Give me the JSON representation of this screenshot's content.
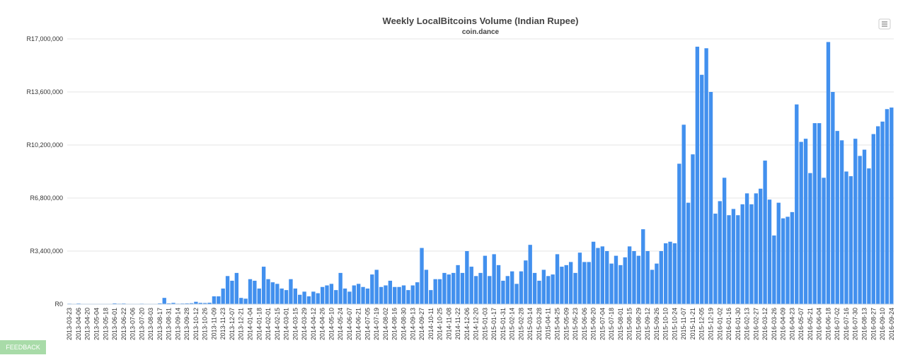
{
  "chart_data": {
    "type": "bar",
    "title": "Weekly LocalBitcoins Volume (Indian Rupee)",
    "subtitle": "coin.dance",
    "color": "#4290ee",
    "grid": true,
    "ylim": [
      0,
      17000000
    ],
    "yticks": [
      {
        "value": 0,
        "label": "R0"
      },
      {
        "value": 3400000,
        "label": "R3,400,000"
      },
      {
        "value": 6800000,
        "label": "R6,800,000"
      },
      {
        "value": 10200000,
        "label": "R10,200,000"
      },
      {
        "value": 13600000,
        "label": "R13,600,000"
      },
      {
        "value": 17000000,
        "label": "R17,000,000"
      }
    ],
    "categories": [
      "2013-03-23",
      null,
      "2013-04-06",
      null,
      "2013-04-20",
      null,
      "2013-05-04",
      null,
      "2013-05-18",
      null,
      "2013-06-01",
      null,
      "2013-06-22",
      null,
      "2013-07-06",
      null,
      "2013-07-20",
      null,
      "2013-08-03",
      null,
      "2013-08-17",
      null,
      "2013-08-31",
      null,
      "2013-09-14",
      null,
      "2013-09-28",
      null,
      "2013-10-12",
      null,
      "2013-10-26",
      null,
      "2013-11-09",
      null,
      "2013-11-23",
      null,
      "2013-12-07",
      null,
      "2013-12-21",
      null,
      "2014-01-04",
      null,
      "2014-01-18",
      null,
      "2014-02-01",
      null,
      "2014-02-15",
      null,
      "2014-03-01",
      null,
      "2014-03-15",
      null,
      "2014-03-29",
      null,
      "2014-04-12",
      null,
      "2014-04-26",
      null,
      "2014-05-10",
      null,
      "2014-05-24",
      null,
      "2014-06-07",
      null,
      "2014-06-21",
      null,
      "2014-07-05",
      null,
      "2014-07-19",
      null,
      "2014-08-02",
      null,
      "2014-08-16",
      null,
      "2014-08-30",
      null,
      "2014-09-13",
      null,
      "2014-09-27",
      null,
      "2014-10-11",
      null,
      "2014-10-25",
      null,
      "2014-11-08",
      null,
      "2014-11-22",
      null,
      "2014-12-06",
      null,
      "2014-12-20",
      null,
      "2015-01-03",
      null,
      "2015-01-17",
      null,
      "2015-01-31",
      null,
      "2015-02-14",
      null,
      "2015-02-28",
      null,
      "2015-03-14",
      null,
      "2015-03-28",
      null,
      "2015-04-11",
      null,
      "2015-04-25",
      null,
      "2015-05-09",
      null,
      "2015-05-23",
      null,
      "2015-06-06",
      null,
      "2015-06-20",
      null,
      "2015-07-04",
      null,
      "2015-07-18",
      null,
      "2015-08-01",
      null,
      "2015-08-15",
      null,
      "2015-08-29",
      null,
      "2015-09-12",
      null,
      "2015-09-26",
      null,
      "2015-10-10",
      null,
      "2015-10-24",
      null,
      "2015-11-07",
      null,
      "2015-11-21",
      null,
      "2015-12-05",
      null,
      "2015-12-19",
      null,
      "2016-01-02",
      null,
      "2016-01-16",
      null,
      "2016-01-30",
      null,
      "2016-02-13",
      null,
      "2016-02-27",
      null,
      "2016-03-12",
      null,
      "2016-03-26",
      null,
      "2016-04-09",
      null,
      "2016-04-23",
      null,
      "2016-05-07",
      null,
      "2016-05-21",
      null,
      "2016-06-04",
      null,
      "2016-06-18",
      null,
      "2016-07-02",
      null,
      "2016-07-16",
      null,
      "2016-07-30",
      null,
      "2016-08-13",
      null,
      "2016-08-27",
      null,
      "2016-09-10",
      null,
      "2016-09-24"
    ],
    "values": [
      30000,
      20000,
      40000,
      20000,
      10000,
      10000,
      20000,
      10000,
      10000,
      10000,
      50000,
      30000,
      40000,
      20000,
      10000,
      20000,
      30000,
      10000,
      20000,
      10000,
      50000,
      400000,
      50000,
      80000,
      30000,
      40000,
      50000,
      60000,
      150000,
      80000,
      70000,
      90000,
      500000,
      500000,
      1000000,
      1800000,
      1500000,
      2000000,
      400000,
      350000,
      1600000,
      1500000,
      1000000,
      2400000,
      1600000,
      1400000,
      1300000,
      1000000,
      900000,
      1600000,
      1000000,
      600000,
      800000,
      500000,
      800000,
      700000,
      1100000,
      1200000,
      1300000,
      900000,
      2000000,
      1000000,
      800000,
      1200000,
      1300000,
      1100000,
      1000000,
      1900000,
      2200000,
      1100000,
      1200000,
      1500000,
      1100000,
      1100000,
      1200000,
      900000,
      1200000,
      1400000,
      3600000,
      2200000,
      900000,
      1600000,
      1600000,
      2000000,
      1900000,
      2000000,
      2500000,
      2000000,
      3400000,
      2400000,
      1800000,
      2000000,
      3100000,
      1800000,
      3200000,
      2500000,
      1500000,
      1800000,
      2100000,
      1300000,
      2100000,
      2800000,
      3800000,
      2000000,
      1500000,
      2200000,
      1800000,
      1900000,
      3200000,
      2400000,
      2500000,
      2700000,
      2000000,
      3300000,
      2700000,
      2700000,
      4000000,
      3600000,
      3700000,
      3400000,
      2600000,
      3100000,
      2500000,
      3000000,
      3700000,
      3400000,
      3100000,
      4800000,
      3400000,
      2200000,
      2600000,
      3400000,
      3900000,
      4000000,
      3900000,
      9000000,
      11500000,
      6500000,
      9600000,
      16500000,
      14700000,
      16400000,
      13600000,
      5800000,
      6600000,
      8100000,
      5700000,
      6100000,
      5700000,
      6400000,
      7100000,
      6400000,
      7100000,
      7400000,
      9200000,
      6700000,
      4400000,
      6500000,
      5500000,
      5600000,
      5900000,
      12800000,
      10400000,
      10600000,
      8400000,
      11600000,
      11600000,
      8100000,
      16800000,
      13600000,
      11100000,
      10500000,
      8500000,
      8200000,
      10600000,
      9500000,
      9900000,
      8700000,
      10900000,
      11400000,
      11700000,
      12500000,
      12600000
    ]
  },
  "feedback": "FEEDBACK"
}
